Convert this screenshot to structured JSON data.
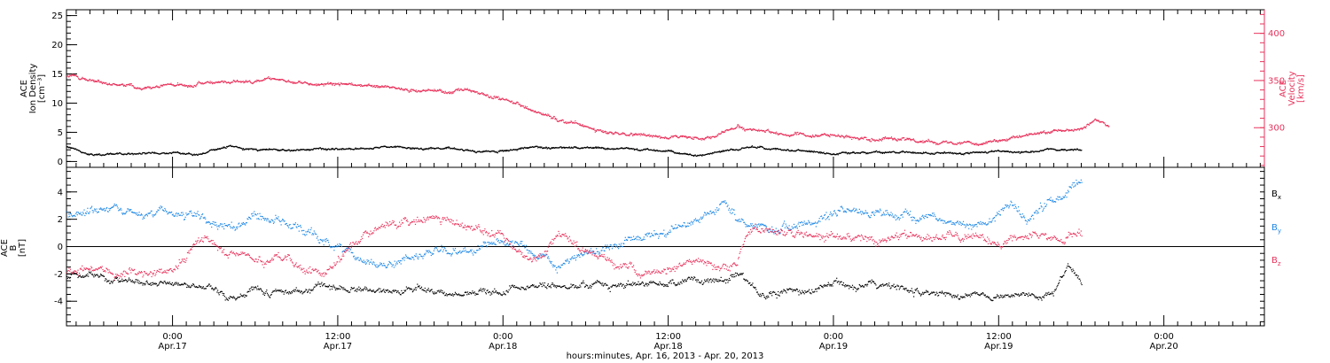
{
  "colors": {
    "black": "#000000",
    "pink": "#e8335c",
    "blue": "#1e88e5"
  },
  "xlabel": "hours:minutes, Apr. 16, 2013 - Apr. 20, 2013",
  "x_ticks": [
    {
      "time": "0:00",
      "date": "Apr.17",
      "hours": 24
    },
    {
      "time": "12:00",
      "date": "Apr.17",
      "hours": 36
    },
    {
      "time": "0:00",
      "date": "Apr.18",
      "hours": 48
    },
    {
      "time": "12:00",
      "date": "Apr.18",
      "hours": 60
    },
    {
      "time": "0:00",
      "date": "Apr.19",
      "hours": 72
    },
    {
      "time": "12:00",
      "date": "Apr.19",
      "hours": 84
    },
    {
      "time": "0:00",
      "date": "Apr.20",
      "hours": 96
    }
  ],
  "x_range_hours": [
    16.3,
    103.3
  ],
  "chart_data": [
    {
      "type": "scatter",
      "panel": "top",
      "ylabel_left": [
        "ACE",
        "Ion Density",
        "[cm⁻³]"
      ],
      "ylabel_right": [
        "ACE",
        "Velocity",
        "[km/s]"
      ],
      "ylim_left": [
        -1,
        26
      ],
      "yticks_left": [
        0,
        5,
        10,
        15,
        20,
        25
      ],
      "ylim_right": [
        258,
        425
      ],
      "yticks_right": [
        300,
        350,
        400
      ],
      "series": [
        {
          "axis": "left",
          "color": "#000000",
          "knots": [
            [
              16.3,
              2.5
            ],
            [
              18,
              1.2
            ],
            [
              22,
              1.5
            ],
            [
              26,
              1.3
            ],
            [
              28,
              2.5
            ],
            [
              32,
              2.0
            ],
            [
              36,
              2.2
            ],
            [
              40,
              2.4
            ],
            [
              44,
              2.2
            ],
            [
              46,
              1.8
            ],
            [
              48,
              1.8
            ],
            [
              50,
              2.6
            ],
            [
              54,
              2.3
            ],
            [
              58,
              2.0
            ],
            [
              60,
              1.9
            ],
            [
              62,
              0.8
            ],
            [
              64,
              1.8
            ],
            [
              66,
              2.4
            ],
            [
              68,
              2.0
            ],
            [
              72,
              1.4
            ],
            [
              76,
              1.6
            ],
            [
              80,
              1.5
            ],
            [
              84,
              1.6
            ],
            [
              88,
              1.8
            ],
            [
              90,
              1.8
            ]
          ]
        },
        {
          "axis": "right",
          "color": "#e8335c",
          "knots": [
            [
              16.3,
              355
            ],
            [
              18,
              350
            ],
            [
              20,
              343
            ],
            [
              24,
              345
            ],
            [
              28,
              348
            ],
            [
              31,
              350
            ],
            [
              34,
              347
            ],
            [
              38,
              345
            ],
            [
              42,
              340
            ],
            [
              46,
              338
            ],
            [
              48,
              330
            ],
            [
              50,
              320
            ],
            [
              52,
              310
            ],
            [
              54,
              300
            ],
            [
              56,
              293
            ],
            [
              60,
              290
            ],
            [
              62,
              289
            ],
            [
              64,
              295
            ],
            [
              65,
              302
            ],
            [
              67,
              294
            ],
            [
              70,
              292
            ],
            [
              74,
              290
            ],
            [
              78,
              287
            ],
            [
              82,
              284
            ],
            [
              84,
              286
            ],
            [
              86,
              291
            ],
            [
              88,
              296
            ],
            [
              90,
              300
            ],
            [
              91,
              309
            ],
            [
              92,
              302
            ]
          ]
        }
      ]
    },
    {
      "type": "scatter",
      "panel": "bottom",
      "ylabel_left": [
        "ACE",
        "B",
        "[nT]"
      ],
      "ylim": [
        -5.8,
        5.8
      ],
      "yticks": [
        -4,
        -2,
        0,
        2,
        4
      ],
      "zero_line": true,
      "legend_position": "right",
      "series": [
        {
          "name": "Bx",
          "label_main": "B",
          "label_sub": "x",
          "color": "#000000",
          "knots": [
            [
              16.3,
              -2.2
            ],
            [
              20,
              -2.6
            ],
            [
              24,
              -2.8
            ],
            [
              27,
              -3.2
            ],
            [
              28,
              -4.0
            ],
            [
              30,
              -3.0
            ],
            [
              33,
              -3.5
            ],
            [
              36,
              -3.2
            ],
            [
              38,
              -3.0
            ],
            [
              40,
              -3.0
            ],
            [
              44,
              -3.2
            ],
            [
              46,
              -3.6
            ],
            [
              48,
              -3.4
            ],
            [
              50,
              -2.8
            ],
            [
              54,
              -3.0
            ],
            [
              58,
              -2.7
            ],
            [
              62,
              -2.5
            ],
            [
              64,
              -2.5
            ],
            [
              65,
              -1.8
            ],
            [
              67,
              -3.6
            ],
            [
              70,
              -3.0
            ],
            [
              74,
              -2.8
            ],
            [
              76,
              -2.5
            ],
            [
              78,
              -3.3
            ],
            [
              82,
              -3.5
            ],
            [
              84,
              -3.7
            ],
            [
              86,
              -3.5
            ],
            [
              88,
              -3.4
            ],
            [
              89,
              -1.2
            ],
            [
              90,
              -2.6
            ]
          ]
        },
        {
          "name": "By",
          "label_main": "B",
          "label_sub": "y",
          "color": "#1e88e5",
          "knots": [
            [
              16.3,
              2.6
            ],
            [
              20,
              2.6
            ],
            [
              23,
              2.6
            ],
            [
              25,
              1.8
            ],
            [
              28,
              1.2
            ],
            [
              30,
              2.2
            ],
            [
              33,
              1.2
            ],
            [
              36,
              0.0
            ],
            [
              38,
              -1.5
            ],
            [
              40,
              -1.2
            ],
            [
              43,
              -0.5
            ],
            [
              46,
              -0.3
            ],
            [
              48,
              0.5
            ],
            [
              50,
              -0.5
            ],
            [
              52,
              -1.5
            ],
            [
              54,
              -0.4
            ],
            [
              56,
              0.0
            ],
            [
              58,
              0.8
            ],
            [
              60,
              1.2
            ],
            [
              62,
              2.0
            ],
            [
              64,
              3.0
            ],
            [
              65,
              1.7
            ],
            [
              68,
              1.0
            ],
            [
              70,
              1.5
            ],
            [
              72,
              2.5
            ],
            [
              76,
              2.3
            ],
            [
              80,
              1.8
            ],
            [
              83,
              1.6
            ],
            [
              85,
              3.0
            ],
            [
              86,
              2.0
            ],
            [
              88,
              3.3
            ],
            [
              90,
              4.7
            ]
          ]
        },
        {
          "name": "Bz",
          "label_main": "B",
          "label_sub": "z",
          "color": "#e8335c",
          "knots": [
            [
              16.3,
              -1.8
            ],
            [
              20,
              -2.2
            ],
            [
              24,
              -1.8
            ],
            [
              26,
              0.5
            ],
            [
              28,
              -0.5
            ],
            [
              32,
              -0.6
            ],
            [
              35,
              -2.2
            ],
            [
              38,
              0.8
            ],
            [
              40,
              2.1
            ],
            [
              44,
              1.8
            ],
            [
              46,
              1.2
            ],
            [
              48,
              0.8
            ],
            [
              50,
              -1.0
            ],
            [
              52,
              1.0
            ],
            [
              54,
              -0.6
            ],
            [
              58,
              -1.8
            ],
            [
              62,
              -1.2
            ],
            [
              65,
              -1.6
            ],
            [
              66,
              1.2
            ],
            [
              70,
              0.8
            ],
            [
              73,
              0.8
            ],
            [
              77,
              0.6
            ],
            [
              80,
              0.8
            ],
            [
              84,
              0.2
            ],
            [
              86,
              0.8
            ],
            [
              88,
              0.6
            ],
            [
              90,
              1.0
            ]
          ]
        }
      ]
    }
  ]
}
